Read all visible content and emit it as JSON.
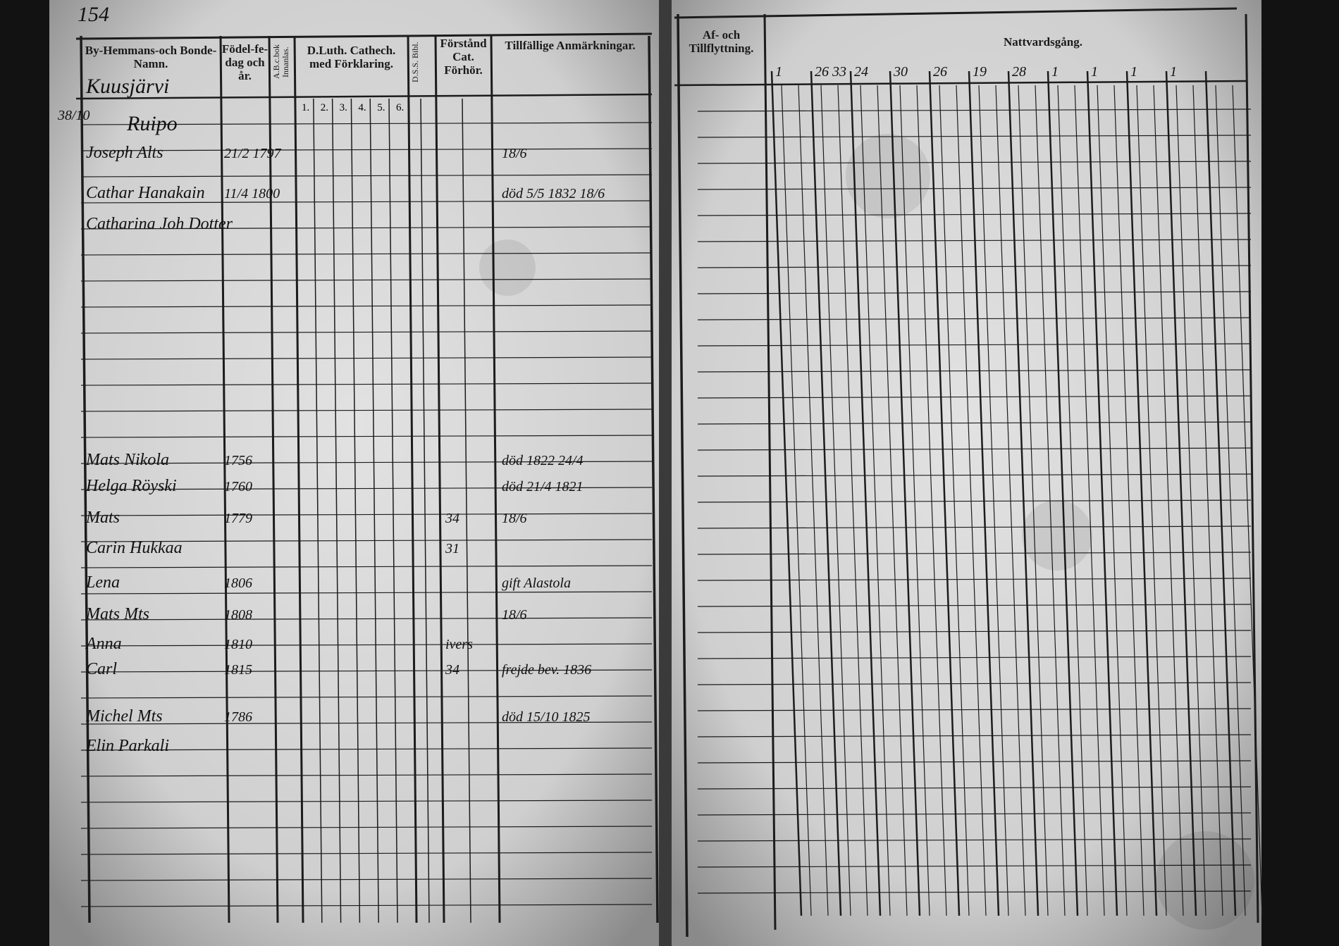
{
  "page_number": "154",
  "left_page": {
    "headers": [
      "By-Hemmans-och Bonde-Namn.",
      "Födel-fe-dag och år.",
      "A.B.c.bok Innanlas.",
      "D.Luth. Cathech. med Förklaring.",
      "D.S.S. Bibl.",
      "Förstånd Cat. Förhör.",
      "Tillfällige Anmärkningar."
    ],
    "catechism_columns": [
      "1.",
      "2.",
      "3.",
      "4.",
      "5.",
      "6."
    ],
    "village": "Kuusjärvi",
    "farm": "Ruipo",
    "margin_note": "38/10",
    "rows": [
      {
        "name": "Joseph Alts",
        "birth": "21/2 1797",
        "remark": "18/6"
      },
      {
        "name": "Cathar Hanakain",
        "birth": "11/4 1800",
        "remark": "död 5/5 1832 18/6"
      },
      {
        "name": "Catharina Joh Dotter"
      },
      {
        "name": "Mats Nikola",
        "birth": "1756",
        "remark": "död 1822 24/4"
      },
      {
        "name": "Helga Röyski",
        "birth": "1760",
        "remark": "död 21/4 1821"
      },
      {
        "name": "Mats",
        "birth": "1779",
        "hearing": "34",
        "remark": "18/6"
      },
      {
        "name": "Carin Hukkaa",
        "hearing": "31"
      },
      {
        "name": "Lena",
        "birth": "1806",
        "remark": "gift Alastola"
      },
      {
        "name": "Mats Mts",
        "birth": "1808",
        "remark": "18/6"
      },
      {
        "name": "Anna",
        "birth": "1810",
        "hearing": "ivers"
      },
      {
        "name": "Carl",
        "birth": "1815",
        "hearing": "34",
        "remark": "frejde bev. 1836"
      },
      {
        "name": "Michel Mts",
        "birth": "1786",
        "remark": "död 15/10 1825"
      },
      {
        "name": "Elin Parkali"
      }
    ]
  },
  "right_page": {
    "headers": [
      "Af- och Tillflyttning.",
      "Nattvardsgång."
    ],
    "column_dates": [
      "1",
      "26 33",
      "24",
      "30",
      "26",
      "19",
      "28",
      "1",
      "1",
      "1",
      "1"
    ]
  }
}
